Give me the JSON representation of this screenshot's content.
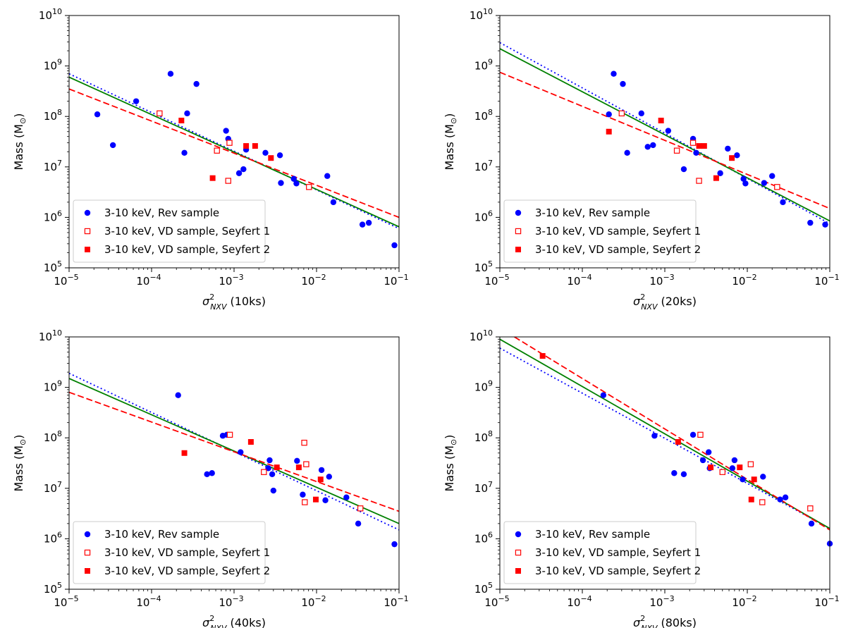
{
  "chart_data": [
    {
      "type": "scatter",
      "xscale": "log",
      "yscale": "log",
      "xlim": [
        1e-05,
        0.1
      ],
      "ylim": [
        100000,
        10000000000
      ],
      "x_tick_exponents": [
        -5,
        -4,
        -3,
        -2,
        -1
      ],
      "y_tick_exponents": [
        5,
        6,
        7,
        8,
        9,
        10
      ],
      "tick_base": "10",
      "ylabel_main": "Mass (M",
      "ylabel_sub": "⊙",
      "ylabel_close": ")",
      "xlabel_symbol": "σ",
      "xlabel_sup": "2",
      "xlabel_sub": "NXV",
      "xlabel_paren": "(10ks)",
      "grid": false,
      "legend_position": "lower-left",
      "colors": {
        "rev": "#0000ff",
        "vd": "#ff0000",
        "fit_all": "#008000"
      },
      "series": [
        {
          "name": "3-10 keV, Rev sample",
          "marker": "filled-circle",
          "color": "#0000ff",
          "points": [
            [
              2.2e-05,
              110000000.0
            ],
            [
              3.4e-05,
              27000000.0
            ],
            [
              6.5e-05,
              200000000.0
            ],
            [
              0.00017,
              700000000.0
            ],
            [
              0.00025,
              19000000.0
            ],
            [
              0.00027,
              115000000.0
            ],
            [
              0.00035,
              440000000.0
            ],
            [
              0.0008,
              52000000.0
            ],
            [
              0.00085,
              36000000.0
            ],
            [
              0.00115,
              7500000.0
            ],
            [
              0.0013,
              9000000.0
            ],
            [
              0.0014,
              22000000.0
            ],
            [
              0.0024,
              19000000.0
            ],
            [
              0.0036,
              17000000.0
            ],
            [
              0.0037,
              4800000.0
            ],
            [
              0.0053,
              5800000.0
            ],
            [
              0.0057,
              4700000.0
            ],
            [
              0.0135,
              6600000.0
            ],
            [
              0.016,
              2000000.0
            ],
            [
              0.036,
              720000.0
            ],
            [
              0.043,
              780000.0
            ],
            [
              0.088,
              280000.0
            ]
          ]
        },
        {
          "name": "3-10 keV, VD sample, Seyfert 1",
          "marker": "open-square",
          "color": "#ff0000",
          "points": [
            [
              0.000125,
              115000000.0
            ],
            [
              0.00062,
              21000000.0
            ],
            [
              0.00085,
              5300000.0
            ],
            [
              0.00088,
              30000000.0
            ],
            [
              0.0081,
              4000000.0
            ]
          ]
        },
        {
          "name": "3-10 keV, VD sample, Seyfert 2",
          "marker": "filled-square",
          "color": "#ff0000",
          "points": [
            [
              0.00023,
              83000000.0
            ],
            [
              0.00055,
              6000000.0
            ],
            [
              0.0014,
              26000000.0
            ],
            [
              0.0018,
              26000000.0
            ],
            [
              0.0028,
              15000000.0
            ]
          ]
        }
      ],
      "fit_lines": [
        {
          "style": "dotted",
          "color": "#0000ff",
          "from": [
            1e-05,
            700000000.0
          ],
          "to": [
            0.1,
            600000.0
          ]
        },
        {
          "style": "solid",
          "color": "#008000",
          "from": [
            1e-05,
            600000000.0
          ],
          "to": [
            0.1,
            650000.0
          ]
        },
        {
          "style": "dashed",
          "color": "#ff0000",
          "from": [
            1e-05,
            350000000.0
          ],
          "to": [
            0.1,
            1000000.0
          ]
        }
      ]
    },
    {
      "type": "scatter",
      "xscale": "log",
      "yscale": "log",
      "xlim": [
        1e-05,
        0.1
      ],
      "ylim": [
        100000,
        10000000000
      ],
      "x_tick_exponents": [
        -5,
        -4,
        -3,
        -2,
        -1
      ],
      "y_tick_exponents": [
        5,
        6,
        7,
        8,
        9,
        10
      ],
      "tick_base": "10",
      "ylabel_main": "Mass (M",
      "ylabel_sub": "⊙",
      "ylabel_close": ")",
      "xlabel_symbol": "σ",
      "xlabel_sup": "2",
      "xlabel_sub": "NXV",
      "xlabel_paren": "(20ks)",
      "grid": false,
      "legend_position": "lower-left",
      "colors": {
        "rev": "#0000ff",
        "vd": "#ff0000",
        "fit_all": "#008000"
      },
      "series": [
        {
          "name": "3-10 keV, Rev sample",
          "marker": "filled-circle",
          "color": "#0000ff",
          "points": [
            [
              0.00021,
              110000000.0
            ],
            [
              0.00024,
              700000000.0
            ],
            [
              0.00031,
              440000000.0
            ],
            [
              0.00035,
              19000000.0
            ],
            [
              0.00052,
              115000000.0
            ],
            [
              0.00062,
              25000000.0
            ],
            [
              0.00072,
              27000000.0
            ],
            [
              0.0011,
              52000000.0
            ],
            [
              0.0017,
              9000000.0
            ],
            [
              0.0022,
              36000000.0
            ],
            [
              0.0024,
              19000000.0
            ],
            [
              0.0047,
              7500000.0
            ],
            [
              0.0058,
              23000000.0
            ],
            [
              0.0075,
              17000000.0
            ],
            [
              0.009,
              5800000.0
            ],
            [
              0.0095,
              4700000.0
            ],
            [
              0.016,
              4800000.0
            ],
            [
              0.02,
              6600000.0
            ],
            [
              0.027,
              2000000.0
            ],
            [
              0.058,
              780000.0
            ],
            [
              0.088,
              720000.0
            ]
          ]
        },
        {
          "name": "3-10 keV, VD sample, Seyfert 1",
          "marker": "open-square",
          "color": "#ff0000",
          "points": [
            [
              0.0003,
              115000000.0
            ],
            [
              0.0014,
              21000000.0
            ],
            [
              0.0022,
              30000000.0
            ],
            [
              0.0026,
              5300000.0
            ],
            [
              0.023,
              4000000.0
            ]
          ]
        },
        {
          "name": "3-10 keV, VD sample, Seyfert 2",
          "marker": "filled-square",
          "color": "#ff0000",
          "points": [
            [
              0.00021,
              50000000.0
            ],
            [
              0.0009,
              83000000.0
            ],
            [
              0.0026,
              26000000.0
            ],
            [
              0.003,
              26000000.0
            ],
            [
              0.0042,
              6000000.0
            ],
            [
              0.0065,
              15000000.0
            ]
          ]
        }
      ],
      "fit_lines": [
        {
          "style": "dotted",
          "color": "#0000ff",
          "from": [
            1e-05,
            2900000000.0
          ],
          "to": [
            0.1,
            750000.0
          ]
        },
        {
          "style": "solid",
          "color": "#008000",
          "from": [
            1e-05,
            2200000000.0
          ],
          "to": [
            0.1,
            850000.0
          ]
        },
        {
          "style": "dashed",
          "color": "#ff0000",
          "from": [
            1e-05,
            750000000.0
          ],
          "to": [
            0.1,
            1500000.0
          ]
        }
      ]
    },
    {
      "type": "scatter",
      "xscale": "log",
      "yscale": "log",
      "xlim": [
        1e-05,
        0.1
      ],
      "ylim": [
        100000,
        10000000000
      ],
      "x_tick_exponents": [
        -5,
        -4,
        -3,
        -2,
        -1
      ],
      "y_tick_exponents": [
        5,
        6,
        7,
        8,
        9,
        10
      ],
      "tick_base": "10",
      "ylabel_main": "Mass (M",
      "ylabel_sub": "⊙",
      "ylabel_close": ")",
      "xlabel_symbol": "σ",
      "xlabel_sup": "2",
      "xlabel_sub": "NXV",
      "xlabel_paren": "(40ks)",
      "grid": false,
      "legend_position": "lower-left",
      "colors": {
        "rev": "#0000ff",
        "vd": "#ff0000",
        "fit_all": "#008000"
      },
      "series": [
        {
          "name": "3-10 keV, Rev sample",
          "marker": "filled-circle",
          "color": "#0000ff",
          "points": [
            [
              0.00021,
              700000000.0
            ],
            [
              0.00047,
              19000000.0
            ],
            [
              0.00054,
              20000000.0
            ],
            [
              0.00073,
              110000000.0
            ],
            [
              0.00082,
              115000000.0
            ],
            [
              0.0012,
              52000000.0
            ],
            [
              0.0026,
              25000000.0
            ],
            [
              0.0027,
              36000000.0
            ],
            [
              0.0029,
              19000000.0
            ],
            [
              0.003,
              9000000.0
            ],
            [
              0.0058,
              35000000.0
            ],
            [
              0.0068,
              7500000.0
            ],
            [
              0.0115,
              23000000.0
            ],
            [
              0.0128,
              5800000.0
            ],
            [
              0.0142,
              17000000.0
            ],
            [
              0.023,
              6600000.0
            ],
            [
              0.032,
              2000000.0
            ],
            [
              0.088,
              780000.0
            ]
          ]
        },
        {
          "name": "3-10 keV, VD sample, Seyfert 1",
          "marker": "open-square",
          "color": "#ff0000",
          "points": [
            [
              0.00089,
              115000000.0
            ],
            [
              0.0023,
              21000000.0
            ],
            [
              0.0071,
              80000000.0
            ],
            [
              0.0072,
              5300000.0
            ],
            [
              0.0075,
              30000000.0
            ],
            [
              0.034,
              4000000.0
            ]
          ]
        },
        {
          "name": "3-10 keV, VD sample, Seyfert 2",
          "marker": "filled-square",
          "color": "#ff0000",
          "points": [
            [
              0.00025,
              50000000.0
            ],
            [
              0.0016,
              83000000.0
            ],
            [
              0.0033,
              26000000.0
            ],
            [
              0.0061,
              26000000.0
            ],
            [
              0.0098,
              6000000.0
            ],
            [
              0.0112,
              15000000.0
            ]
          ]
        }
      ],
      "fit_lines": [
        {
          "style": "dotted",
          "color": "#0000ff",
          "from": [
            1e-05,
            1900000000.0
          ],
          "to": [
            0.1,
            1500000.0
          ]
        },
        {
          "style": "solid",
          "color": "#008000",
          "from": [
            1e-05,
            1500000000.0
          ],
          "to": [
            0.1,
            2000000.0
          ]
        },
        {
          "style": "dashed",
          "color": "#ff0000",
          "from": [
            1e-05,
            800000000.0
          ],
          "to": [
            0.1,
            3500000.0
          ]
        }
      ]
    },
    {
      "type": "scatter",
      "xscale": "log",
      "yscale": "log",
      "xlim": [
        1e-05,
        0.1
      ],
      "ylim": [
        100000,
        10000000000
      ],
      "x_tick_exponents": [
        -5,
        -4,
        -3,
        -2,
        -1
      ],
      "y_tick_exponents": [
        5,
        6,
        7,
        8,
        9,
        10
      ],
      "tick_base": "10",
      "ylabel_main": "Mass (M",
      "ylabel_sub": "⊙",
      "ylabel_close": ")",
      "xlabel_symbol": "σ",
      "xlabel_sup": "2",
      "xlabel_sub": "NXV",
      "xlabel_paren": "(80ks)",
      "grid": false,
      "legend_position": "lower-left",
      "colors": {
        "rev": "#0000ff",
        "vd": "#ff0000",
        "fit_all": "#008000"
      },
      "series": [
        {
          "name": "3-10 keV, Rev sample",
          "marker": "filled-circle",
          "color": "#0000ff",
          "points": [
            [
              0.00018,
              700000000.0
            ],
            [
              0.00075,
              110000000.0
            ],
            [
              0.0013,
              20000000.0
            ],
            [
              0.0017,
              19000000.0
            ],
            [
              0.0022,
              115000000.0
            ],
            [
              0.0029,
              36000000.0
            ],
            [
              0.0034,
              52000000.0
            ],
            [
              0.0035,
              25000000.0
            ],
            [
              0.0066,
              25000000.0
            ],
            [
              0.007,
              36000000.0
            ],
            [
              0.0088,
              15000000.0
            ],
            [
              0.0155,
              17000000.0
            ],
            [
              0.025,
              6000000.0
            ],
            [
              0.029,
              6600000.0
            ],
            [
              0.06,
              2000000.0
            ],
            [
              0.1,
              800000.0
            ]
          ]
        },
        {
          "name": "3-10 keV, VD sample, Seyfert 1",
          "marker": "open-square",
          "color": "#ff0000",
          "points": [
            [
              0.0027,
              115000000.0
            ],
            [
              0.005,
              21000000.0
            ],
            [
              0.011,
              30000000.0
            ],
            [
              0.0152,
              5300000.0
            ],
            [
              0.058,
              4000000.0
            ]
          ]
        },
        {
          "name": "3-10 keV, VD sample, Seyfert 2",
          "marker": "filled-square",
          "color": "#ff0000",
          "points": [
            [
              3.3e-05,
              4200000000.0
            ],
            [
              0.00145,
              83000000.0
            ],
            [
              0.0036,
              26000000.0
            ],
            [
              0.0081,
              26000000.0
            ],
            [
              0.0112,
              6000000.0
            ],
            [
              0.0121,
              15000000.0
            ]
          ]
        }
      ],
      "fit_lines": [
        {
          "style": "dotted",
          "color": "#0000ff",
          "from": [
            1e-05,
            6000000000.0
          ],
          "to": [
            0.1,
            1600000.0
          ]
        },
        {
          "style": "solid",
          "color": "#008000",
          "from": [
            1e-05,
            9000000000.0
          ],
          "to": [
            0.1,
            1600000.0
          ]
        },
        {
          "style": "dashed",
          "color": "#ff0000",
          "from": [
            1.5e-05,
            10000000000.0
          ],
          "to": [
            0.1,
            1500000.0
          ]
        }
      ]
    }
  ]
}
